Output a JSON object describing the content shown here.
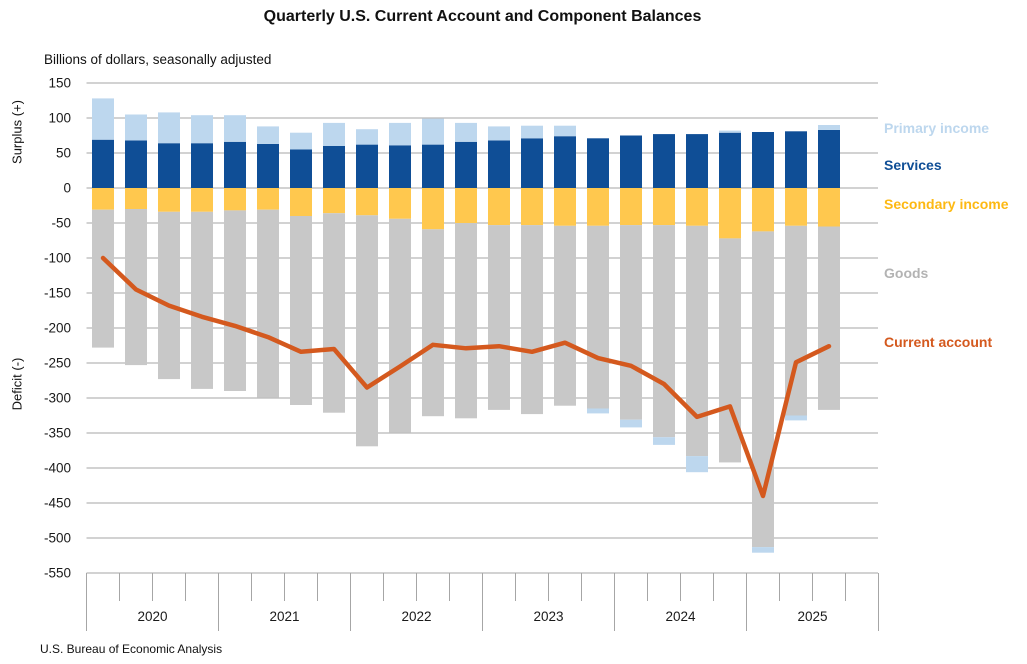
{
  "title": "Quarterly U.S. Current Account and Component Balances",
  "subtitle": "Billions of dollars, seasonally adjusted",
  "source": "U.S. Bureau of Economic Analysis",
  "y_axis": {
    "label_positive": "Surplus (+)",
    "label_negative": "Deficit (-)",
    "ticks": [
      150,
      100,
      50,
      0,
      -50,
      -100,
      -150,
      -200,
      -250,
      -300,
      -350,
      -400,
      -450,
      -500,
      -550
    ]
  },
  "x_axis": {
    "years": [
      "2020",
      "2021",
      "2022",
      "2023",
      "2024",
      "2025"
    ]
  },
  "legend": [
    {
      "label": "Primary income",
      "color": "#BDD7EE"
    },
    {
      "label": "Services",
      "color": "#0F4E96"
    },
    {
      "label": "Secondary income",
      "color": "#FDB913"
    },
    {
      "label": "Goods",
      "color": "#B3B3B3"
    },
    {
      "label": "Current account",
      "color": "#D4591E"
    }
  ],
  "colors": {
    "primary_income": "#BDD7EE",
    "services": "#0F4E96",
    "secondary_income": "#FFC84E",
    "goods": "#C8C8C8",
    "current_account_line": "#D4591E",
    "gridline": "#A6A6A6",
    "tick_text": "#1A1A1A"
  },
  "chart_data": {
    "type": "bar",
    "subtype": "stacked-bars-with-line",
    "title": "Quarterly U.S. Current Account and Component Balances",
    "ylabel": "Billions of dollars, seasonally adjusted",
    "ylim": [
      -550,
      150
    ],
    "grid": true,
    "legend_position": "right",
    "categories": [
      "2020 Q1",
      "2020 Q2",
      "2020 Q3",
      "2020 Q4",
      "2021 Q1",
      "2021 Q2",
      "2021 Q3",
      "2021 Q4",
      "2022 Q1",
      "2022 Q2",
      "2022 Q3",
      "2022 Q4",
      "2023 Q1",
      "2023 Q2",
      "2023 Q3",
      "2023 Q4",
      "2024 Q1",
      "2024 Q2",
      "2024 Q3",
      "2024 Q4",
      "2025 Q1",
      "2025 Q2",
      "2025 Q3"
    ],
    "series": [
      {
        "name": "Services",
        "role": "stacked-bar",
        "values": [
          69,
          68,
          64,
          64,
          66,
          63,
          55,
          60,
          62,
          61,
          62,
          66,
          68,
          71,
          74,
          71,
          75,
          77,
          77,
          79,
          80,
          81,
          83
        ]
      },
      {
        "name": "Primary income",
        "role": "stacked-bar",
        "values": [
          59,
          37,
          44,
          40,
          38,
          25,
          24,
          33,
          22,
          32,
          37,
          27,
          20,
          18,
          15,
          -7,
          -11,
          -11,
          -23,
          3,
          -8,
          -7,
          7
        ]
      },
      {
        "name": "Secondary income",
        "role": "stacked-bar",
        "values": [
          -31,
          -30,
          -34,
          -34,
          -32,
          -31,
          -40,
          -36,
          -39,
          -44,
          -59,
          -50,
          -53,
          -53,
          -54,
          -54,
          -53,
          -53,
          -54,
          -72,
          -62,
          -54,
          -55
        ]
      },
      {
        "name": "Goods",
        "role": "stacked-bar",
        "values": [
          -197,
          -223,
          -239,
          -253,
          -258,
          -268,
          -270,
          -285,
          -330,
          -305,
          -267,
          -279,
          -264,
          -270,
          -257,
          -261,
          -278,
          -303,
          -329,
          -320,
          -451,
          -271,
          -262
        ]
      },
      {
        "name": "Current account",
        "role": "line",
        "values": [
          -100,
          -145,
          -168,
          -184,
          -197,
          -213,
          -234,
          -230,
          -285,
          -255,
          -224,
          -229,
          -226,
          -234,
          -221,
          -243,
          -254,
          -280,
          -327,
          -312,
          -440,
          -249,
          -226
        ]
      }
    ]
  }
}
